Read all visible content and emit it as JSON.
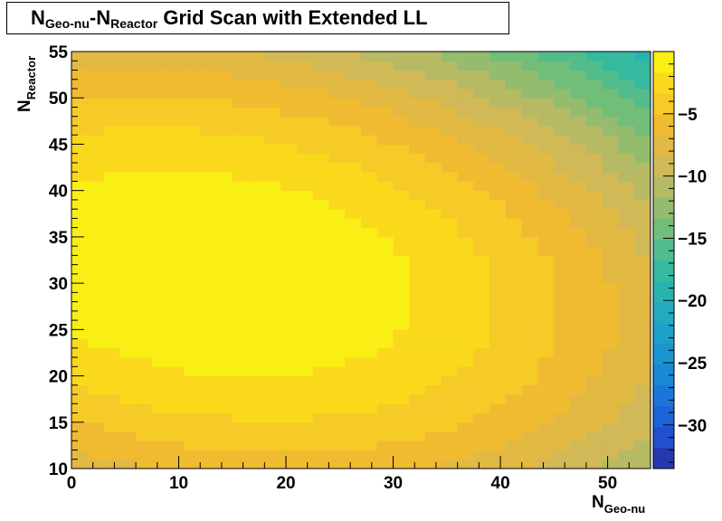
{
  "chart_data": {
    "type": "heatmap",
    "title": {
      "pre": "N",
      "sub1": "Geo-nu",
      "mid": "-N",
      "sub2": "Reactor",
      "post": " Grid Scan with Extended LL"
    },
    "xlabel": {
      "main": "N",
      "sub": "Geo-nu"
    },
    "ylabel": {
      "main": "N",
      "sub": "Reactor"
    },
    "xlim": [
      0,
      54
    ],
    "ylim": [
      10,
      55
    ],
    "x_ticks": [
      0,
      10,
      20,
      30,
      40,
      50
    ],
    "y_ticks": [
      10,
      15,
      20,
      25,
      30,
      35,
      40,
      45,
      50,
      55
    ],
    "z_range": [
      -33.5,
      0
    ],
    "z_ticks": [
      -5,
      -10,
      -15,
      -20,
      -25,
      -30
    ],
    "z_tick_labels": [
      "−5",
      "−10",
      "−15",
      "−20",
      "−25",
      "−30"
    ],
    "grid": false,
    "palette": "kBird (yellow high, dark blue low)",
    "peak": {
      "x": 13,
      "y": 31,
      "z": 0
    },
    "bins": {
      "nx": 36,
      "ny": 45
    }
  }
}
